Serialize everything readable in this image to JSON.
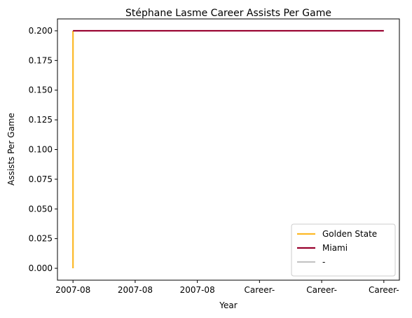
{
  "chart_data": {
    "type": "line",
    "title": "Stéphane Lasme Career Assists Per Game",
    "xlabel": "Year",
    "ylabel": "Assists Per Game",
    "x_tick_labels": [
      "2007-08",
      "2007-08",
      "2007-08",
      "Career-",
      "Career-",
      "Career-"
    ],
    "ylim": [
      -0.01,
      0.21
    ],
    "y_ticks": [
      0.0,
      0.025,
      0.05,
      0.075,
      0.1,
      0.125,
      0.15,
      0.175,
      0.2
    ],
    "y_tick_labels": [
      "0.000",
      "0.025",
      "0.050",
      "0.075",
      "0.100",
      "0.125",
      "0.150",
      "0.175",
      "0.200"
    ],
    "grid": false,
    "legend_position": "bottom-right",
    "series": [
      {
        "name": "Golden State",
        "color": "#FDB927",
        "points": [
          [
            0,
            0.0
          ],
          [
            0,
            0.2
          ]
        ]
      },
      {
        "name": "Miami",
        "color": "#98002E",
        "points": [
          [
            0,
            0.2
          ],
          [
            5,
            0.2
          ]
        ]
      },
      {
        "name": "-",
        "color": "#C4C4C4",
        "points": []
      }
    ]
  }
}
